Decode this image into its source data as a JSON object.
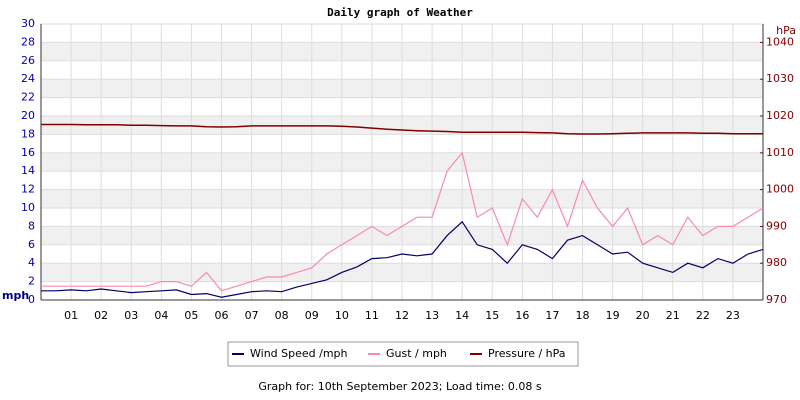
{
  "chart_data": {
    "type": "line",
    "title": "Daily graph of Weather",
    "y_label": "mph",
    "y2_label": "hPa",
    "x": [
      0,
      0.5,
      1,
      1.5,
      2,
      2.5,
      3,
      3.5,
      4,
      4.5,
      5,
      5.5,
      6,
      6.5,
      7,
      7.5,
      8,
      8.5,
      9,
      9.5,
      10,
      10.5,
      11,
      11.5,
      12,
      12.5,
      13,
      13.5,
      14,
      14.5,
      15,
      15.5,
      16,
      16.5,
      17,
      17.5,
      18,
      18.5,
      19,
      19.5,
      20,
      20.5,
      21,
      21.5,
      22,
      22.5,
      23,
      23.5,
      24
    ],
    "series": [
      {
        "name": "Wind Speed /mph",
        "color": "#000066",
        "axis": "y",
        "values": [
          1,
          1,
          1.1,
          1,
          1.2,
          1,
          0.8,
          0.9,
          1,
          1.1,
          0.6,
          0.7,
          0.3,
          0.6,
          0.9,
          1,
          0.9,
          1.4,
          1.8,
          2.2,
          3,
          3.6,
          4.5,
          4.6,
          5,
          4.8,
          5,
          7,
          8.5,
          6,
          5.5,
          4,
          6,
          5.5,
          4.5,
          6.5,
          7,
          6,
          5,
          5.2,
          4,
          3.5,
          3,
          4,
          3.5,
          4.5,
          4,
          5,
          5.5
        ]
      },
      {
        "name": "Gust / mph",
        "color": "#f88ab0",
        "axis": "y",
        "values": [
          1.5,
          1.5,
          1.5,
          1.5,
          1.5,
          1.5,
          1.5,
          1.5,
          2,
          2,
          1.5,
          3,
          1,
          1.5,
          2,
          2.5,
          2.5,
          3,
          3.5,
          5,
          6,
          7,
          8,
          7,
          8,
          9,
          9,
          14,
          16,
          9,
          10,
          6,
          11,
          9,
          12,
          8,
          13,
          10,
          8,
          10,
          6,
          7,
          6,
          9,
          7,
          8,
          8,
          9,
          10
        ]
      },
      {
        "name": "Pressure / hPa",
        "color": "#800000",
        "axis": "y2",
        "values": [
          1017.7,
          1017.7,
          1017.7,
          1017.6,
          1017.6,
          1017.6,
          1017.5,
          1017.5,
          1017.4,
          1017.3,
          1017.3,
          1017.1,
          1017.0,
          1017.1,
          1017.3,
          1017.3,
          1017.3,
          1017.3,
          1017.3,
          1017.3,
          1017.2,
          1017.0,
          1016.7,
          1016.4,
          1016.2,
          1016.0,
          1015.9,
          1015.8,
          1015.6,
          1015.6,
          1015.6,
          1015.6,
          1015.6,
          1015.5,
          1015.4,
          1015.2,
          1015.1,
          1015.1,
          1015.2,
          1015.3,
          1015.4,
          1015.4,
          1015.4,
          1015.4,
          1015.3,
          1015.3,
          1015.2,
          1015.2,
          1015.2
        ]
      }
    ],
    "xlim": [
      0,
      24
    ],
    "xticks": [
      {
        "value": 1,
        "label": "01"
      },
      {
        "value": 2,
        "label": "02"
      },
      {
        "value": 3,
        "label": "03"
      },
      {
        "value": 4,
        "label": "04"
      },
      {
        "value": 5,
        "label": "05"
      },
      {
        "value": 6,
        "label": "06"
      },
      {
        "value": 7,
        "label": "07"
      },
      {
        "value": 8,
        "label": "08"
      },
      {
        "value": 9,
        "label": "09"
      },
      10,
      11,
      12,
      13,
      14,
      15,
      16,
      17,
      18,
      19,
      20,
      21,
      22,
      23
    ],
    "ylim": [
      0,
      30
    ],
    "yticks": [
      0,
      2,
      4,
      6,
      8,
      10,
      12,
      14,
      16,
      18,
      20,
      22,
      24,
      26,
      28,
      30
    ],
    "y2lim": [
      970,
      1045
    ],
    "y2ticks": [
      970,
      980,
      990,
      1000,
      1010,
      1020,
      1030,
      1040
    ],
    "grid": true,
    "legend": "bottom",
    "footer": "Graph for: 10th September 2023; Load time: 0.08 s"
  }
}
